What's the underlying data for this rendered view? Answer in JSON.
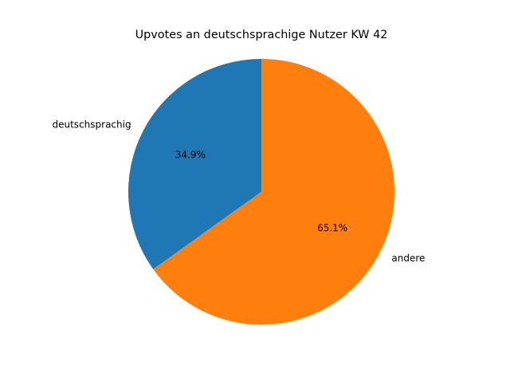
{
  "chart_data": {
    "type": "pie",
    "title": "Upvotes an deutschsprachige Nutzer KW 42",
    "categories": [
      "deutschsprachig",
      "andere"
    ],
    "values": [
      34.9,
      65.1
    ],
    "value_labels": [
      "34.9%",
      "65.1%"
    ],
    "colors": [
      "#1f77b4",
      "#ff7f0e"
    ],
    "start_angle": 90
  }
}
